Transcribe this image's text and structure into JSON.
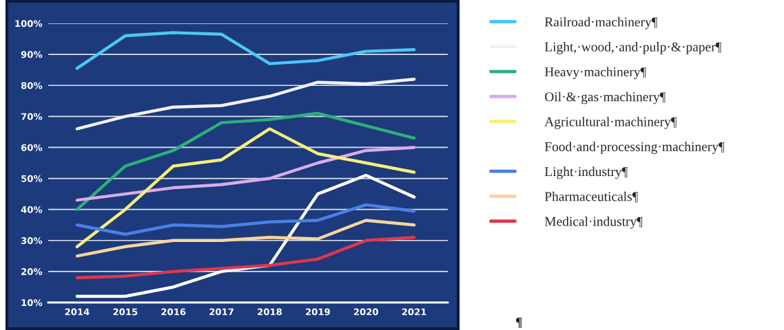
{
  "chart_data": {
    "type": "line",
    "categories": [
      "2014",
      "2015",
      "2016",
      "2017",
      "2018",
      "2019",
      "2020",
      "2021"
    ],
    "series": [
      {
        "name": "Railroad·machinery¶",
        "color": "#4fc6f2",
        "values": [
          85.5,
          96,
          97,
          96.5,
          87,
          88,
          91,
          91.5
        ]
      },
      {
        "name": "Light,·wood,·and·pulp·&·paper¶",
        "color": "#f4f0f8",
        "values": [
          66,
          70,
          73,
          73.5,
          76.5,
          81,
          80.5,
          82
        ]
      },
      {
        "name": "Heavy·machinery¶",
        "color": "#2fae7c",
        "values": [
          40,
          54,
          59,
          68,
          69,
          71,
          67,
          63
        ]
      },
      {
        "name": "Oil·&·gas·machinery¶",
        "color": "#dcaaec",
        "values": [
          43,
          45,
          47,
          48,
          50,
          55,
          59,
          60
        ]
      },
      {
        "name": "Agricultural·machinery¶",
        "color": "#f6f07a",
        "values": [
          28,
          40,
          54,
          56,
          66,
          58,
          55,
          52
        ]
      },
      {
        "name": "Food·and·processing·machinery¶",
        "color": "#ffffff",
        "values": [
          12,
          12,
          15,
          20,
          22,
          45,
          51,
          44
        ]
      },
      {
        "name": "Light·industry¶",
        "color": "#4b80e4",
        "values": [
          35,
          32,
          35,
          34.5,
          36,
          36.5,
          41.5,
          39.5
        ]
      },
      {
        "name": "Pharmaceuticals¶",
        "color": "#f8d59c",
        "values": [
          25,
          28,
          30,
          30,
          31,
          30.5,
          36.5,
          35
        ]
      },
      {
        "name": "Medical·industry¶",
        "color": "#e2364f",
        "values": [
          18,
          18.5,
          20,
          21,
          22,
          24,
          30,
          31
        ]
      }
    ],
    "ylim": [
      10,
      100
    ],
    "yticks": [
      {
        "value": 10,
        "label": "10%"
      },
      {
        "value": 20,
        "label": "20%"
      },
      {
        "value": 30,
        "label": "30%"
      },
      {
        "value": 40,
        "label": "40%"
      },
      {
        "value": 50,
        "label": "50%"
      },
      {
        "value": 60,
        "label": "60%"
      },
      {
        "value": 70,
        "label": "70%"
      },
      {
        "value": 80,
        "label": "80%"
      },
      {
        "value": 90,
        "label": "90%"
      },
      {
        "value": 100,
        "label": "100%"
      }
    ],
    "grid": "y",
    "legend": "right",
    "marker": "none",
    "line_style": "solid",
    "annotations": [
      "¶"
    ]
  }
}
